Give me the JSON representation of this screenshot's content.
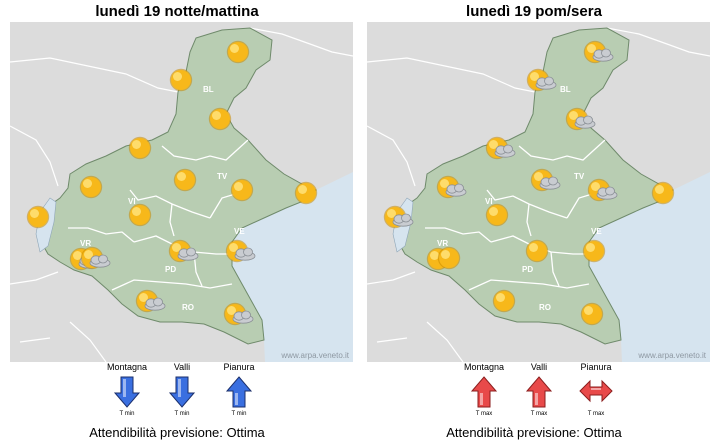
{
  "panels": [
    {
      "title": "lunedì 19 notte/mattina",
      "credit": "www.arpa.veneto.it",
      "legend": [
        {
          "label": "Montagna",
          "trend": "down",
          "sub": "T min",
          "color": "#3a6fe0"
        },
        {
          "label": "Valli",
          "trend": "down",
          "sub": "T min",
          "color": "#3a6fe0"
        },
        {
          "label": "Pianura",
          "trend": "up",
          "sub": "T min",
          "color": "#3a6fe0"
        }
      ],
      "reliability": "Attendibilità previsione: Ottima",
      "icons": [
        "sun",
        "sun",
        "sun",
        "sun",
        "sun",
        "sun",
        "sun",
        "sun",
        "sun",
        "sun",
        "sun-cloud",
        "sun-cloud",
        "sun-cloud",
        "sun-cloud",
        "sun-cloud",
        "sun-cloud"
      ]
    },
    {
      "title": "lunedì 19 pom/sera",
      "credit": "www.arpa.veneto.it",
      "legend": [
        {
          "label": "Montagna",
          "trend": "up",
          "sub": "T max",
          "color": "#e84a4a"
        },
        {
          "label": "Valli",
          "trend": "up",
          "sub": "T max",
          "color": "#e84a4a"
        },
        {
          "label": "Pianura",
          "trend": "both",
          "sub": "T max",
          "color": "#e84a4a"
        }
      ],
      "reliability": "Attendibilità previsione: Ottima",
      "icons": [
        "sun-cloud",
        "sun-cloud",
        "sun-cloud",
        "sun-cloud",
        "sun-cloud",
        "sun-cloud",
        "sun-cloud",
        "sun",
        "sun",
        "sun-cloud",
        "sun",
        "sun",
        "sun",
        "sun",
        "sun",
        "sun"
      ]
    }
  ],
  "provinces": [
    "BL",
    "TV",
    "VI",
    "VR",
    "PD",
    "VE",
    "RO"
  ]
}
